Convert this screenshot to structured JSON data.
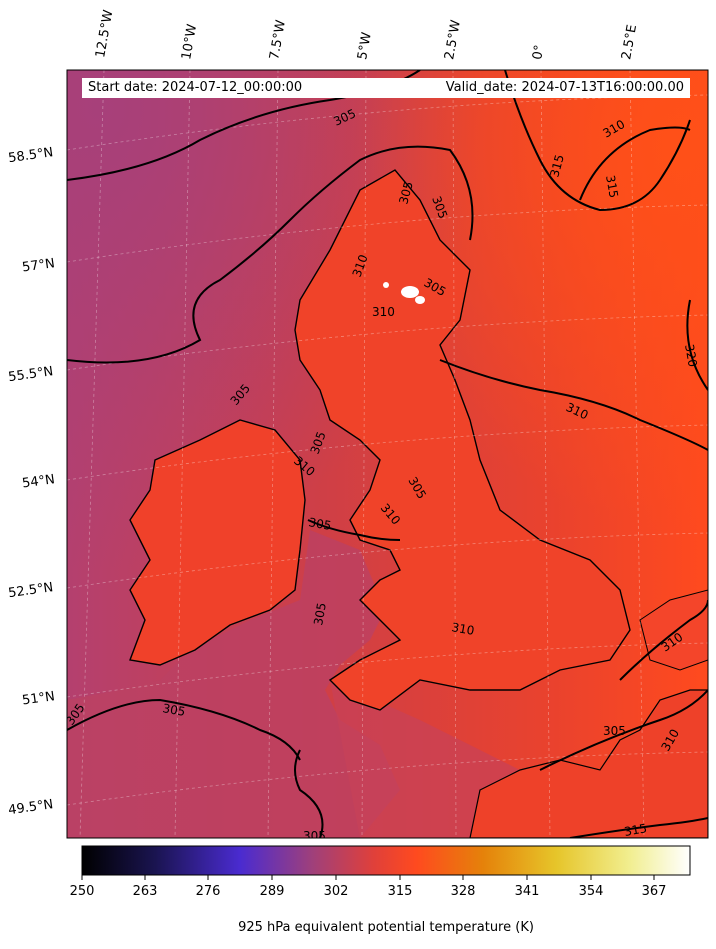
{
  "header": {
    "start_date": "Start date: 2024-07-12_00:00:00",
    "valid_date": "Valid_date: 2024-07-13T16:00:00.00"
  },
  "lon_labels": [
    "12.5°W",
    "10°W",
    "7.5°W",
    "5°W",
    "2.5°W",
    "0°",
    "2.5°E"
  ],
  "lat_labels": [
    "58.5°N",
    "57°N",
    "55.5°N",
    "54°N",
    "52.5°N",
    "51°N",
    "49.5°N"
  ],
  "contour_labels": [
    "305",
    "305",
    "305",
    "310",
    "310",
    "305",
    "305",
    "310",
    "305",
    "305",
    "310",
    "305",
    "305",
    "305",
    "305",
    "305",
    "310",
    "310",
    "310",
    "315",
    "315",
    "310",
    "320",
    "315",
    "305",
    "310"
  ],
  "colorbar": {
    "min": 250,
    "max": 375,
    "ticks": [
      "250",
      "263",
      "276",
      "289",
      "302",
      "315",
      "328",
      "341",
      "354",
      "367"
    ],
    "label": "925 hPa equivalent potential temperature (K)",
    "colormap": "CMRmap-like",
    "colors": [
      "#000000",
      "#1a1450",
      "#4a2bd0",
      "#a0407a",
      "#e0403a",
      "#ff4a1f",
      "#e5820a",
      "#e6c52a",
      "#f1ee8f",
      "#ffffff"
    ]
  },
  "map_colors": {
    "ocean_west": "#b2416e",
    "sea_mid": "#d4403f",
    "land": "#f04128",
    "north_sea_east": "#ff4a1c",
    "snow_white": "#ffffff"
  }
}
